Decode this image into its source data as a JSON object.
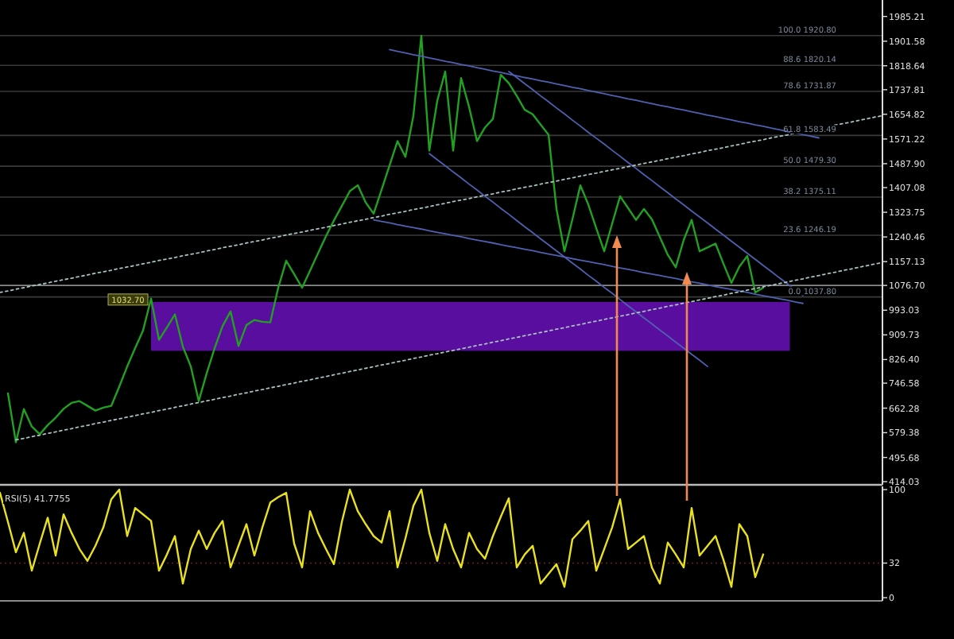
{
  "chart_data": [
    {
      "type": "line",
      "ylim": [
        414.03,
        2030
      ],
      "tick_labels": "y",
      "grid": false,
      "categories": [
        null,
        null,
        null,
        null,
        null,
        null,
        null,
        null,
        null,
        null,
        null,
        null,
        null,
        null,
        null,
        null,
        null,
        null,
        null,
        null,
        null,
        null,
        null,
        null,
        null,
        null,
        null,
        null,
        null,
        null,
        null,
        null,
        null,
        null,
        null,
        null,
        null,
        null,
        null,
        null,
        null,
        null,
        null,
        null,
        null,
        null,
        null,
        null,
        null,
        null,
        null,
        null,
        null,
        null,
        null,
        null,
        null,
        null,
        null,
        null,
        null,
        null,
        null,
        null,
        null,
        null,
        null,
        null,
        null,
        null,
        null,
        null,
        null,
        null,
        null,
        null,
        null,
        null,
        null,
        null,
        null,
        null,
        null,
        null,
        null,
        null,
        null,
        null,
        null,
        null,
        null,
        null,
        null,
        null,
        null,
        null,
        null,
        null,
        null,
        null,
        null,
        null,
        null,
        null,
        null,
        null,
        null,
        null,
        null,
        null,
        null,
        null
      ],
      "yticks": [
        {
          "value": 414.03,
          "label": "414.03"
        },
        {
          "value": 495.68,
          "label": "495.68"
        },
        {
          "value": 579.38,
          "label": "579.38"
        },
        {
          "value": 662.28,
          "label": "662.28"
        },
        {
          "value": 746.58,
          "label": "746.58"
        },
        {
          "value": 826.4,
          "label": "826.40"
        },
        {
          "value": 909.73,
          "label": "909.73"
        },
        {
          "value": 993.03,
          "label": "993.03"
        },
        {
          "value": 1076.7,
          "label": "1076.70"
        },
        {
          "value": 1157.13,
          "label": "1157.13"
        },
        {
          "value": 1240.46,
          "label": "1240.46"
        },
        {
          "value": 1323.75,
          "label": "1323.75"
        },
        {
          "value": 1407.08,
          "label": "1407.08"
        },
        {
          "value": 1487.9,
          "label": "1487.90"
        },
        {
          "value": 1571.22,
          "label": "1571.22"
        },
        {
          "value": 1654.82,
          "label": "1654.82"
        },
        {
          "value": 1737.81,
          "label": "1737.81"
        },
        {
          "value": 1818.64,
          "label": "1818.64"
        },
        {
          "value": 1901.58,
          "label": "1901.58"
        },
        {
          "value": 1985.21,
          "label": "1985.21"
        }
      ],
      "series": [
        {
          "color": "#22a022",
          "values": [
            null,
            712,
            547,
            659,
            600,
            574,
            605,
            630,
            660,
            680,
            686,
            670,
            654,
            664,
            670,
            735,
            803,
            865,
            925,
            1032,
            893,
            935,
            979,
            870,
            803,
            686,
            780,
            865,
            940,
            989,
            872,
            943,
            960,
            954,
            952,
            1069,
            1160,
            1115,
            1069,
            1127,
            1185,
            1243,
            1296,
            1345,
            1395,
            1415,
            1357,
            1319,
            1400,
            1482,
            1564,
            1511,
            1650,
            1920,
            1532,
            1700,
            1799,
            1532,
            1777,
            1680,
            1564,
            1610,
            1639,
            1788,
            1760,
            1717,
            1670,
            1655,
            1620,
            1586,
            1335,
            1192,
            1300,
            1415,
            1350,
            1270,
            1192,
            1285,
            1378,
            1338,
            1298,
            1335,
            1300,
            1240,
            1180,
            1138,
            1230,
            1298,
            1192,
            1205,
            1218,
            1150,
            1085,
            1140,
            1176,
            1053,
            1069,
            null,
            null,
            null,
            null,
            null,
            null,
            null,
            null,
            null,
            null,
            null,
            null,
            null,
            null,
            null
          ]
        },
        {
          "color": "#5060b0",
          "line_style": "solid",
          "values": [
            null,
            null,
            null,
            null,
            null,
            null,
            null,
            null,
            null,
            null,
            null,
            null,
            null,
            null,
            null,
            null,
            null,
            null,
            null,
            null,
            null,
            null,
            null,
            null,
            null,
            null,
            null,
            null,
            null,
            null,
            null,
            null,
            null,
            null,
            null,
            null,
            null,
            null,
            null,
            null,
            null,
            null,
            null,
            null,
            null,
            null,
            null,
            null,
            null,
            1873,
            1867,
            1862,
            1856,
            1851,
            1845,
            1840,
            1834,
            1829,
            1823,
            1818,
            1812,
            1807,
            1801,
            1796,
            1790,
            1785,
            1779,
            1774,
            1768,
            1763,
            1757,
            1752,
            1746,
            1741,
            1735,
            1730,
            1724,
            1718,
            1713,
            1707,
            1702,
            1696,
            1691,
            1685,
            1680,
            1674,
            1669,
            1663,
            1658,
            1652,
            1647,
            1641,
            1636,
            1630,
            1625,
            1619,
            1614,
            1608,
            1603,
            1597,
            1592,
            1586,
            1581,
            1575,
            null,
            null,
            null,
            null,
            null,
            null,
            null,
            null
          ]
        },
        {
          "color": "#5060b0",
          "line_style": "solid",
          "values": [
            null,
            null,
            null,
            null,
            null,
            null,
            null,
            null,
            null,
            null,
            null,
            null,
            null,
            null,
            null,
            null,
            null,
            null,
            null,
            null,
            null,
            null,
            null,
            null,
            null,
            null,
            null,
            null,
            null,
            null,
            null,
            null,
            null,
            null,
            null,
            null,
            null,
            null,
            null,
            null,
            null,
            null,
            null,
            null,
            null,
            null,
            null,
            null,
            null,
            null,
            null,
            null,
            null,
            null,
            null,
            null,
            null,
            null,
            null,
            null,
            null,
            null,
            null,
            null,
            1799,
            1779,
            1758,
            1738,
            1717,
            1697,
            1676,
            1656,
            1635,
            1615,
            1594,
            1574,
            1554,
            1533,
            1513,
            1492,
            1472,
            1451,
            1431,
            1410,
            1390,
            1369,
            1349,
            1328,
            1308,
            1288,
            1267,
            1247,
            1226,
            1206,
            1185,
            1165,
            1144,
            1124,
            1103,
            1083,
            1062,
            1042,
            null,
            null,
            null,
            null,
            null,
            null,
            null,
            null,
            null,
            null
          ]
        },
        {
          "color": "#5060b0",
          "line_style": "solid",
          "values": [
            null,
            null,
            null,
            null,
            null,
            null,
            null,
            null,
            null,
            null,
            null,
            null,
            null,
            null,
            null,
            null,
            null,
            null,
            null,
            null,
            null,
            null,
            null,
            null,
            null,
            null,
            null,
            null,
            null,
            null,
            null,
            null,
            null,
            null,
            null,
            null,
            null,
            null,
            null,
            null,
            null,
            null,
            null,
            null,
            null,
            null,
            null,
            null,
            null,
            null,
            null,
            null,
            null,
            null,
            1522,
            1501,
            1481,
            1460,
            1440,
            1419,
            1399,
            1378,
            1358,
            1337,
            1317,
            1296,
            1275,
            1255,
            1234,
            1214,
            1193,
            1173,
            1152,
            1132,
            1111,
            1091,
            1070,
            1050,
            1029,
            1008,
            988,
            967,
            947,
            926,
            906,
            885,
            865,
            844,
            824,
            803,
            null,
            null,
            null,
            null,
            null,
            null,
            null,
            null,
            null,
            null,
            null,
            null,
            null,
            null,
            null,
            null,
            null,
            null,
            null,
            null,
            null,
            null
          ]
        },
        {
          "color": "#5060b0",
          "line_style": "solid",
          "values": [
            null,
            null,
            null,
            null,
            null,
            null,
            null,
            null,
            null,
            null,
            null,
            null,
            null,
            null,
            null,
            null,
            null,
            null,
            null,
            null,
            null,
            null,
            null,
            null,
            null,
            null,
            null,
            null,
            null,
            null,
            null,
            null,
            null,
            null,
            null,
            null,
            null,
            null,
            null,
            null,
            null,
            null,
            null,
            null,
            null,
            null,
            null,
            1298,
            1293,
            1288,
            1282,
            1277,
            1272,
            1267,
            1261,
            1256,
            1251,
            1246,
            1241,
            1235,
            1230,
            1225,
            1220,
            1214,
            1209,
            1204,
            1199,
            1194,
            1188,
            1183,
            1178,
            1173,
            1167,
            1162,
            1157,
            1152,
            1147,
            1141,
            1136,
            1131,
            1126,
            1120,
            1115,
            1110,
            1105,
            1100,
            1094,
            1089,
            1084,
            1079,
            1073,
            1068,
            1063,
            1058,
            1053,
            1047,
            1042,
            1037,
            1032,
            1027,
            1021,
            1016,
            null,
            null,
            null,
            null,
            null,
            null,
            null,
            null,
            null,
            null
          ]
        },
        {
          "color": "#a8c0c0",
          "line_style": "dotted",
          "values": [
            1053,
            1058,
            1064,
            1069,
            1075,
            1080,
            1085,
            1091,
            1096,
            1101,
            1107,
            1112,
            1118,
            1123,
            1128,
            1134,
            1139,
            1144,
            1150,
            1155,
            1161,
            1166,
            1171,
            1177,
            1182,
            1187,
            1193,
            1198,
            1204,
            1209,
            1214,
            1220,
            1225,
            1230,
            1236,
            1241,
            1247,
            1252,
            1257,
            1263,
            1268,
            1273,
            1279,
            1284,
            1290,
            1295,
            1300,
            1306,
            1311,
            1317,
            1322,
            1327,
            1333,
            1338,
            1343,
            1349,
            1354,
            1360,
            1365,
            1370,
            1376,
            1381,
            1386,
            1392,
            1397,
            1403,
            1408,
            1413,
            1419,
            1424,
            1429,
            1435,
            1440,
            1446,
            1451,
            1456,
            1462,
            1467,
            1472,
            1478,
            1483,
            1489,
            1494,
            1499,
            1505,
            1510,
            1515,
            1521,
            1526,
            1532,
            1537,
            1542,
            1548,
            1553,
            1559,
            1564,
            1569,
            1575,
            1580,
            1585,
            1591,
            1596,
            1602,
            1607,
            1612,
            1618,
            1623,
            1628,
            1634,
            1639,
            1645,
            1650
          ]
        },
        {
          "color": "#a8c0c0",
          "line_style": "dotted",
          "values": [
            null,
            null,
            555,
            560,
            566,
            571,
            577,
            582,
            588,
            593,
            599,
            604,
            610,
            615,
            621,
            626,
            632,
            637,
            643,
            648,
            654,
            659,
            665,
            670,
            676,
            681,
            687,
            692,
            698,
            703,
            709,
            714,
            720,
            725,
            731,
            736,
            742,
            747,
            753,
            758,
            764,
            769,
            775,
            780,
            786,
            791,
            797,
            802,
            808,
            813,
            819,
            824,
            830,
            835,
            841,
            846,
            852,
            857,
            863,
            868,
            874,
            879,
            885,
            890,
            896,
            901,
            907,
            912,
            918,
            923,
            929,
            934,
            940,
            945,
            951,
            956,
            962,
            967,
            973,
            978,
            984,
            989,
            995,
            1000,
            1006,
            1011,
            1017,
            1022,
            1028,
            1033,
            1039,
            1044,
            1050,
            1055,
            1061,
            1066,
            1072,
            1077,
            1083,
            1088,
            1094,
            1099,
            1105,
            1110,
            1116,
            1121,
            1127,
            1132,
            1138,
            1143,
            1149,
            1154
          ]
        }
      ],
      "ref_lines": [
        {
          "axis": "y",
          "value": 1076.7,
          "label": null,
          "color": "#8a8a8a"
        },
        {
          "axis": "y",
          "value": 1920.8,
          "label": "100.0 1920.80",
          "color": "#3a3a3a"
        },
        {
          "axis": "y",
          "value": 1820.14,
          "label": "88.6 1820.14",
          "color": "#3a3a3a"
        },
        {
          "axis": "y",
          "value": 1731.87,
          "label": "78.6 1731.87",
          "color": "#3a3a3a"
        },
        {
          "axis": "y",
          "value": 1583.49,
          "label": "61.8 1583.49",
          "color": "#3a3a3a"
        },
        {
          "axis": "y",
          "value": 1479.3,
          "label": "50.0 1479.30",
          "color": "#3a3a3a"
        },
        {
          "axis": "y",
          "value": 1375.11,
          "label": "38.2 1375.11",
          "color": "#3a3a3a"
        },
        {
          "axis": "y",
          "value": 1246.19,
          "label": "23.6 1246.19",
          "color": "#3a3a3a"
        },
        {
          "axis": "y",
          "value": 1037.8,
          "label": "0.0 1037.80",
          "color": "#3a3a3a"
        }
      ],
      "bands": [
        {
          "axis": "y",
          "from": 856,
          "to": 1021,
          "label": null,
          "color": "#5a0ea0"
        }
      ],
      "annotations": [
        "1032.70"
      ]
    },
    {
      "type": "line",
      "ylim": [
        0,
        100
      ],
      "yticks": [
        0,
        32,
        100
      ],
      "tick_labels": "y",
      "grid": false,
      "categories": [
        null,
        null,
        null,
        null,
        null,
        null,
        null,
        null,
        null,
        null,
        null,
        null,
        null,
        null,
        null,
        null,
        null,
        null,
        null,
        null,
        null,
        null,
        null,
        null,
        null,
        null,
        null,
        null,
        null,
        null,
        null,
        null,
        null,
        null,
        null,
        null,
        null,
        null,
        null,
        null,
        null,
        null,
        null,
        null,
        null,
        null,
        null,
        null,
        null,
        null,
        null,
        null,
        null,
        null,
        null,
        null,
        null,
        null,
        null,
        null,
        null,
        null,
        null,
        null,
        null,
        null,
        null,
        null,
        null,
        null,
        null,
        null,
        null,
        null,
        null,
        null,
        null,
        null,
        null,
        null,
        null,
        null,
        null,
        null,
        null,
        null,
        null,
        null,
        null,
        null,
        null,
        null,
        null,
        null,
        null,
        null,
        null,
        null,
        null,
        null,
        null,
        null,
        null,
        null,
        null,
        null,
        null,
        null,
        null,
        null,
        null,
        null
      ],
      "series": [
        {
          "color": "#e8e020",
          "values": [
            97,
            70,
            42,
            60,
            25,
            50,
            74,
            39,
            77,
            60,
            45,
            34,
            48,
            65,
            91,
            100,
            57,
            83,
            77,
            71,
            25,
            40,
            57,
            13,
            45,
            62,
            45,
            60,
            71,
            28,
            48,
            68,
            39,
            65,
            88,
            93,
            97,
            50,
            28,
            80,
            60,
            45,
            31,
            70,
            100,
            80,
            68,
            57,
            51,
            80,
            28,
            55,
            85,
            100,
            60,
            34,
            68,
            45,
            28,
            60,
            45,
            36,
            57,
            75,
            92,
            28,
            40,
            48,
            13,
            22,
            31,
            10,
            54,
            62,
            71,
            25,
            45,
            65,
            91,
            45,
            51,
            57,
            28,
            13,
            51,
            40,
            28,
            83,
            39,
            48,
            57,
            35,
            10,
            68,
            57,
            19,
            40,
            null,
            null,
            null,
            null,
            null,
            null,
            null,
            null,
            null,
            null,
            null,
            null,
            null,
            null,
            null
          ]
        }
      ],
      "ref_lines": [
        {
          "axis": "y",
          "value": 32,
          "label": null,
          "color": "#6a2020"
        }
      ],
      "annotations": [
        "RSI(5) 41.7755"
      ]
    }
  ]
}
